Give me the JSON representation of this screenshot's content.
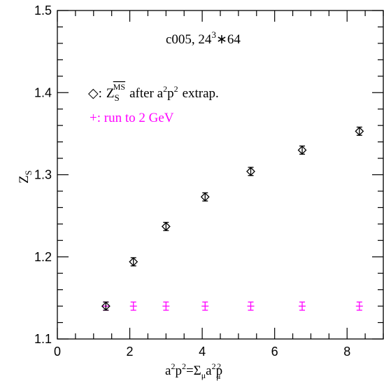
{
  "chart_data": {
    "type": "scatter",
    "title": "",
    "xlabel": "a²p²=Σ_μ a²p²_μ",
    "ylabel": "Z_S",
    "xlim": [
      0,
      9
    ],
    "ylim": [
      1.1,
      1.5
    ],
    "x_ticks": [
      0,
      2,
      4,
      6,
      8
    ],
    "x_tick_labels": [
      "0",
      "2",
      "4",
      "6",
      "8"
    ],
    "y_ticks": [
      1.1,
      1.2,
      1.3,
      1.4,
      1.5
    ],
    "y_tick_labels": [
      "1.1",
      "1.2",
      "1.3",
      "1.4",
      "1.5"
    ],
    "grid": false,
    "annotations": {
      "ensemble": "c005, 24",
      "ensemble_sup": "3",
      "ensemble_tail": "∗64",
      "legend_black_symbol": "◇:",
      "legend_black_z": "Z",
      "legend_black_sub": "S",
      "legend_black_sup": "MS",
      "legend_black_text_a": "after a",
      "legend_black_text_b": "p",
      "legend_black_text_c": "extrap.",
      "legend_magenta": "+: run to 2 GeV"
    },
    "series": [
      {
        "name": "Z_S^MS after a²p² extrap.",
        "marker": "diamond",
        "color": "#000000",
        "points": [
          {
            "x": 1.34,
            "y": 1.14,
            "err": 0.005
          },
          {
            "x": 2.1,
            "y": 1.194,
            "err": 0.005
          },
          {
            "x": 3.0,
            "y": 1.237,
            "err": 0.005
          },
          {
            "x": 4.08,
            "y": 1.273,
            "err": 0.005
          },
          {
            "x": 5.34,
            "y": 1.304,
            "err": 0.005
          },
          {
            "x": 6.76,
            "y": 1.33,
            "err": 0.005
          },
          {
            "x": 8.34,
            "y": 1.353,
            "err": 0.005
          }
        ]
      },
      {
        "name": "run to 2 GeV",
        "marker": "plus",
        "color": "#ff00ff",
        "points": [
          {
            "x": 1.34,
            "y": 1.14,
            "err": 0.005
          },
          {
            "x": 2.1,
            "y": 1.14,
            "err": 0.005
          },
          {
            "x": 3.0,
            "y": 1.14,
            "err": 0.005
          },
          {
            "x": 4.08,
            "y": 1.14,
            "err": 0.005
          },
          {
            "x": 5.34,
            "y": 1.14,
            "err": 0.005
          },
          {
            "x": 6.76,
            "y": 1.14,
            "err": 0.005
          },
          {
            "x": 8.34,
            "y": 1.14,
            "err": 0.005
          }
        ]
      }
    ]
  }
}
